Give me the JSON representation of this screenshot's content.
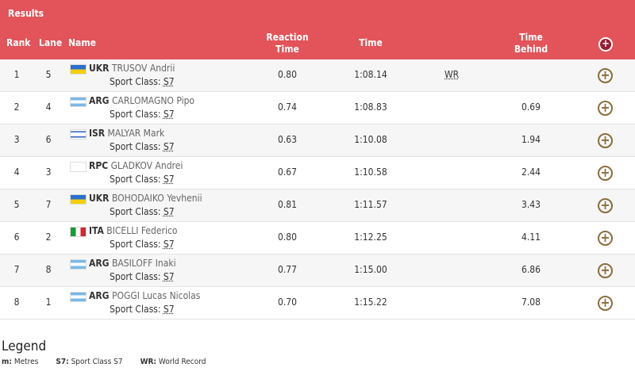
{
  "title": "Results",
  "columns": {
    "rank": "Rank",
    "lane": "Lane",
    "name": "Name",
    "reaction": "Reaction Time",
    "time": "Time",
    "behind": "Time Behind"
  },
  "sport_class_label": "Sport Class:",
  "rows": [
    {
      "rank": "1",
      "lane": "5",
      "noc": "UKR",
      "name": "TRUSOV Andrii",
      "flag": "ukr",
      "sc": "S7",
      "reaction": "0.80",
      "time": "1:08.14",
      "record": "WR",
      "behind": ""
    },
    {
      "rank": "2",
      "lane": "4",
      "noc": "ARG",
      "name": "CARLOMAGNO Pipo",
      "flag": "arg",
      "sc": "S7",
      "reaction": "0.74",
      "time": "1:08.83",
      "record": "",
      "behind": "0.69"
    },
    {
      "rank": "3",
      "lane": "6",
      "noc": "ISR",
      "name": "MALYAR Mark",
      "flag": "isr",
      "sc": "S7",
      "reaction": "0.63",
      "time": "1:10.08",
      "record": "",
      "behind": "1.94"
    },
    {
      "rank": "4",
      "lane": "3",
      "noc": "RPC",
      "name": "GLADKOV Andrei",
      "flag": "rpc",
      "sc": "S7",
      "reaction": "0.67",
      "time": "1:10.58",
      "record": "",
      "behind": "2.44"
    },
    {
      "rank": "5",
      "lane": "7",
      "noc": "UKR",
      "name": "BOHODAIKO Yevhenii",
      "flag": "ukr",
      "sc": "S7",
      "reaction": "0.81",
      "time": "1:11.57",
      "record": "",
      "behind": "3.43"
    },
    {
      "rank": "6",
      "lane": "2",
      "noc": "ITA",
      "name": "BICELLI Federico",
      "flag": "ita",
      "sc": "S7",
      "reaction": "0.80",
      "time": "1:12.25",
      "record": "",
      "behind": "4.11"
    },
    {
      "rank": "7",
      "lane": "8",
      "noc": "ARG",
      "name": "BASILOFF Inaki",
      "flag": "arg",
      "sc": "S7",
      "reaction": "0.77",
      "time": "1:15.00",
      "record": "",
      "behind": "6.86"
    },
    {
      "rank": "8",
      "lane": "1",
      "noc": "ARG",
      "name": "POGGI Lucas Nicolas",
      "flag": "arg",
      "sc": "S7",
      "reaction": "0.70",
      "time": "1:15.22",
      "record": "",
      "behind": "7.08"
    }
  ],
  "legend": {
    "title": "Legend",
    "items": [
      {
        "key": "m:",
        "label": "Metres"
      },
      {
        "key": "S7:",
        "label": "Sport Class S7"
      },
      {
        "key": "WR:",
        "label": "World Record"
      }
    ]
  },
  "colors": {
    "header": "#e2545a",
    "plus": "#8a6d3b"
  }
}
